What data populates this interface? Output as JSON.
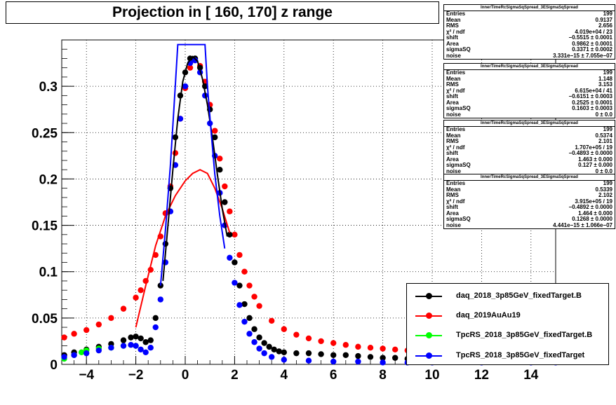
{
  "title": "Projection in [ 160, 170] z range",
  "stats": [
    {
      "name": "InnerTimeRcSigmaSqSpread_3ESigmaSqSpread",
      "rows": [
        [
          "Entries",
          "199"
        ],
        [
          "Mean",
          "0.9137"
        ],
        [
          "RMS",
          "2.656"
        ],
        [
          "χ² / ndf",
          "4.019e+04 / 23"
        ],
        [
          "shift",
          "−0.5515 ± 0.0001"
        ],
        [
          "Area",
          "0.9862 ± 0.0001"
        ],
        [
          "sigmaSQ",
          "0.3371 ± 0.0002"
        ],
        [
          "noise",
          "3.331e−15 ± 7.055e−07"
        ]
      ]
    },
    {
      "name": "InnerTimeRcSigmaSqSpread_3ESigmaSqSpread",
      "rows": [
        [
          "Entries",
          "199"
        ],
        [
          "Mean",
          "1.148"
        ],
        [
          "RMS",
          "3.153"
        ],
        [
          "χ² / ndf",
          "6.615e+04 / 41"
        ],
        [
          "shift",
          "−0.6151 ± 0.0003"
        ],
        [
          "Area",
          "0.2525 ± 0.0001"
        ],
        [
          "sigmaSQ",
          "0.1603 ± 0.0003"
        ],
        [
          "noise",
          "0 ± 0.0"
        ]
      ]
    },
    {
      "name": "InnerTimeRcSigmaSqSpread_3ESigmaSqSpread",
      "rows": [
        [
          "Entries",
          "199"
        ],
        [
          "Mean",
          "0.5374"
        ],
        [
          "RMS",
          "2.101"
        ],
        [
          "χ² / ndf",
          "1.707e+05 / 19"
        ],
        [
          "shift",
          "−0.4893 ± 0.0000"
        ],
        [
          "Area",
          "1.463 ± 0.000"
        ],
        [
          "sigmaSQ",
          "0.127 ± 0.000"
        ],
        [
          "noise",
          "0 ± 0.0"
        ]
      ]
    },
    {
      "name": "InnerTimeRcSigmaSqSpread_3ESigmaSqSpread",
      "rows": [
        [
          "Entries",
          "199"
        ],
        [
          "Mean",
          "0.5339"
        ],
        [
          "RMS",
          "2.102"
        ],
        [
          "χ² / ndf",
          "3.915e+05 / 19"
        ],
        [
          "shift",
          "−0.4892 ± 0.0000"
        ],
        [
          "Area",
          "1.464 ± 0.000"
        ],
        [
          "sigmaSQ",
          "0.1268 ± 0.0000"
        ],
        [
          "noise",
          "4.441e−15 ± 1.066e−07"
        ]
      ]
    }
  ],
  "legend": [
    {
      "label": "daq_2018_3p85GeV_fixedTarget.B",
      "color": "#000000"
    },
    {
      "label": "daq_2019AuAu19",
      "color": "#ff0000"
    },
    {
      "label": "TpcRS_2018_3p85GeV_fixedTarget.B",
      "color": "#00ff00"
    },
    {
      "label": "TpcRS_2018_3p85GeV_fixedTarget",
      "color": "#0000ff"
    }
  ],
  "chart_data": {
    "type": "scatter",
    "xlim": [
      -5,
      15
    ],
    "ylim": [
      0,
      0.35
    ],
    "xticks": [
      -4,
      -2,
      0,
      2,
      4,
      6,
      8,
      10,
      12,
      14
    ],
    "xtick_labels": [
      "−4",
      "−2",
      "0",
      "2",
      "4",
      "6",
      "8",
      "10",
      "12",
      "14"
    ],
    "yticks": [
      0,
      0.05,
      0.1,
      0.15,
      0.2,
      0.25,
      0.3
    ],
    "ytick_labels": [
      "0",
      "0.05",
      "0.1",
      "0.15",
      "0.2",
      "0.25",
      "0.3"
    ],
    "grid": true,
    "series": [
      {
        "name": "daq_2018_3p85GeV_fixedTarget.B",
        "color": "#000000",
        "points": [
          [
            -4.9,
            0.01
          ],
          [
            -4.5,
            0.013
          ],
          [
            -4.0,
            0.016
          ],
          [
            -3.5,
            0.019
          ],
          [
            -3.0,
            0.022
          ],
          [
            -2.5,
            0.026
          ],
          [
            -2.2,
            0.029
          ],
          [
            -2.0,
            0.03
          ],
          [
            -1.8,
            0.028
          ],
          [
            -1.6,
            0.024
          ],
          [
            -1.4,
            0.026
          ],
          [
            -1.2,
            0.05
          ],
          [
            -1.0,
            0.085
          ],
          [
            -0.8,
            0.13
          ],
          [
            -0.6,
            0.19
          ],
          [
            -0.4,
            0.245
          ],
          [
            -0.2,
            0.29
          ],
          [
            0.0,
            0.315
          ],
          [
            0.2,
            0.33
          ],
          [
            0.4,
            0.33
          ],
          [
            0.6,
            0.32
          ],
          [
            0.8,
            0.3
          ],
          [
            1.0,
            0.275
          ],
          [
            1.2,
            0.245
          ],
          [
            1.4,
            0.21
          ],
          [
            1.6,
            0.175
          ],
          [
            1.8,
            0.14
          ],
          [
            2.0,
            0.11
          ],
          [
            2.2,
            0.085
          ],
          [
            2.4,
            0.065
          ],
          [
            2.6,
            0.05
          ],
          [
            2.8,
            0.038
          ],
          [
            3.0,
            0.029
          ],
          [
            3.2,
            0.023
          ],
          [
            3.4,
            0.019
          ],
          [
            3.6,
            0.016
          ],
          [
            3.8,
            0.014
          ],
          [
            4.0,
            0.013
          ],
          [
            4.5,
            0.012
          ],
          [
            5.0,
            0.012
          ],
          [
            5.5,
            0.011
          ],
          [
            6.0,
            0.01
          ],
          [
            6.5,
            0.01
          ],
          [
            7.0,
            0.009
          ],
          [
            7.5,
            0.008
          ],
          [
            8.0,
            0.007
          ],
          [
            8.5,
            0.007
          ],
          [
            9.0,
            0.006
          ],
          [
            10.0,
            0.005
          ]
        ]
      },
      {
        "name": "daq_2019AuAu19",
        "color": "#ff0000",
        "points": [
          [
            -4.9,
            0.029
          ],
          [
            -4.5,
            0.033
          ],
          [
            -4.0,
            0.037
          ],
          [
            -3.5,
            0.043
          ],
          [
            -3.0,
            0.05
          ],
          [
            -2.5,
            0.06
          ],
          [
            -2.0,
            0.072
          ],
          [
            -1.8,
            0.08
          ],
          [
            -1.6,
            0.09
          ],
          [
            -1.4,
            0.102
          ],
          [
            -1.2,
            0.118
          ],
          [
            -1.0,
            0.138
          ],
          [
            -0.8,
            0.163
          ],
          [
            -0.6,
            0.192
          ],
          [
            -0.4,
            0.228
          ],
          [
            -0.2,
            0.265
          ],
          [
            0.0,
            0.298
          ],
          [
            0.2,
            0.32
          ],
          [
            0.4,
            0.328
          ],
          [
            0.6,
            0.322
          ],
          [
            0.8,
            0.305
          ],
          [
            1.0,
            0.28
          ],
          [
            1.2,
            0.252
          ],
          [
            1.4,
            0.222
          ],
          [
            1.6,
            0.192
          ],
          [
            1.8,
            0.165
          ],
          [
            2.0,
            0.14
          ],
          [
            2.2,
            0.118
          ],
          [
            2.4,
            0.1
          ],
          [
            2.6,
            0.085
          ],
          [
            2.8,
            0.073
          ],
          [
            3.0,
            0.063
          ],
          [
            3.5,
            0.047
          ],
          [
            4.0,
            0.038
          ],
          [
            4.5,
            0.032
          ],
          [
            5.0,
            0.028
          ],
          [
            5.5,
            0.025
          ],
          [
            6.0,
            0.023
          ],
          [
            6.5,
            0.021
          ],
          [
            7.0,
            0.019
          ],
          [
            7.5,
            0.018
          ],
          [
            8.0,
            0.017
          ],
          [
            8.5,
            0.016
          ],
          [
            9.0,
            0.015
          ],
          [
            10.0,
            0.013
          ],
          [
            11.0,
            0.012
          ],
          [
            12.0,
            0.011
          ],
          [
            13.0,
            0.01
          ],
          [
            14.0,
            0.009
          ],
          [
            15.0,
            0.008
          ]
        ]
      },
      {
        "name": "TpcRS_2018_3p85GeV_fixedTarget.B",
        "color": "#00ff00",
        "points": [
          [
            -4.9,
            0.006
          ],
          [
            -4.5,
            0.01
          ],
          [
            -4.2,
            0.013
          ],
          [
            -4.0,
            0.015
          ],
          [
            -3.5,
            0.017
          ],
          [
            -3.0,
            0.018
          ],
          [
            -2.5,
            0.02
          ],
          [
            -2.0,
            0.02
          ]
        ]
      },
      {
        "name": "TpcRS_2018_3p85GeV_fixedTarget",
        "color": "#0000ff",
        "points": [
          [
            -4.9,
            0.008
          ],
          [
            -4.5,
            0.01
          ],
          [
            -4.0,
            0.012
          ],
          [
            -3.5,
            0.015
          ],
          [
            -3.0,
            0.018
          ],
          [
            -2.5,
            0.02
          ],
          [
            -2.2,
            0.021
          ],
          [
            -2.0,
            0.02
          ],
          [
            -1.8,
            0.016
          ],
          [
            -1.6,
            0.013
          ],
          [
            -1.4,
            0.018
          ],
          [
            -1.2,
            0.04
          ],
          [
            -1.0,
            0.07
          ],
          [
            -0.8,
            0.11
          ],
          [
            -0.6,
            0.165
          ],
          [
            -0.4,
            0.215
          ],
          [
            -0.2,
            0.265
          ],
          [
            0.0,
            0.3
          ],
          [
            0.2,
            0.325
          ],
          [
            0.4,
            0.328
          ],
          [
            0.6,
            0.315
          ],
          [
            0.8,
            0.29
          ],
          [
            1.0,
            0.26
          ],
          [
            1.2,
            0.225
          ],
          [
            1.4,
            0.185
          ],
          [
            1.6,
            0.15
          ],
          [
            1.8,
            0.115
          ],
          [
            2.0,
            0.088
          ],
          [
            2.2,
            0.064
          ],
          [
            2.4,
            0.046
          ],
          [
            2.6,
            0.033
          ],
          [
            2.8,
            0.024
          ],
          [
            3.0,
            0.017
          ],
          [
            3.2,
            0.012
          ],
          [
            3.5,
            0.008
          ],
          [
            4.0,
            0.005
          ],
          [
            5.0,
            0.004
          ],
          [
            6.0,
            0.003
          ],
          [
            7.0,
            0.003
          ],
          [
            8.0,
            0.002
          ],
          [
            9.0,
            0.002
          ],
          [
            10.0,
            0.002
          ],
          [
            12.0,
            0.002
          ],
          [
            14.0,
            0.002
          ],
          [
            15.0,
            0.002
          ]
        ]
      }
    ],
    "fits": [
      {
        "color": "#ff0000",
        "points": [
          [
            -2.0,
            0.04
          ],
          [
            -1.6,
            0.085
          ],
          [
            -1.2,
            0.128
          ],
          [
            -0.8,
            0.16
          ],
          [
            -0.4,
            0.182
          ],
          [
            0.0,
            0.198
          ],
          [
            0.3,
            0.206
          ],
          [
            0.6,
            0.21
          ],
          [
            0.9,
            0.206
          ],
          [
            1.2,
            0.19
          ],
          [
            1.5,
            0.168
          ],
          [
            1.8,
            0.142
          ]
        ]
      },
      {
        "color": "#000000",
        "points": [
          [
            -0.9,
            0.09
          ],
          [
            -0.7,
            0.15
          ],
          [
            -0.5,
            0.21
          ],
          [
            -0.3,
            0.265
          ],
          [
            -0.1,
            0.305
          ],
          [
            0.1,
            0.325
          ],
          [
            0.3,
            0.332
          ],
          [
            0.5,
            0.327
          ],
          [
            0.7,
            0.308
          ],
          [
            0.9,
            0.28
          ],
          [
            1.1,
            0.245
          ],
          [
            1.3,
            0.205
          ],
          [
            1.5,
            0.168
          ],
          [
            1.7,
            0.138
          ]
        ]
      },
      {
        "color": "#0000ff",
        "points": [
          [
            -1.0,
            0.085
          ],
          [
            -0.8,
            0.145
          ],
          [
            -0.6,
            0.215
          ],
          [
            -0.45,
            0.28
          ],
          [
            -0.3,
            0.345
          ],
          [
            0.8,
            0.345
          ],
          [
            0.9,
            0.3
          ],
          [
            1.05,
            0.25
          ],
          [
            1.2,
            0.205
          ],
          [
            1.4,
            0.16
          ],
          [
            1.6,
            0.125
          ]
        ]
      }
    ]
  }
}
